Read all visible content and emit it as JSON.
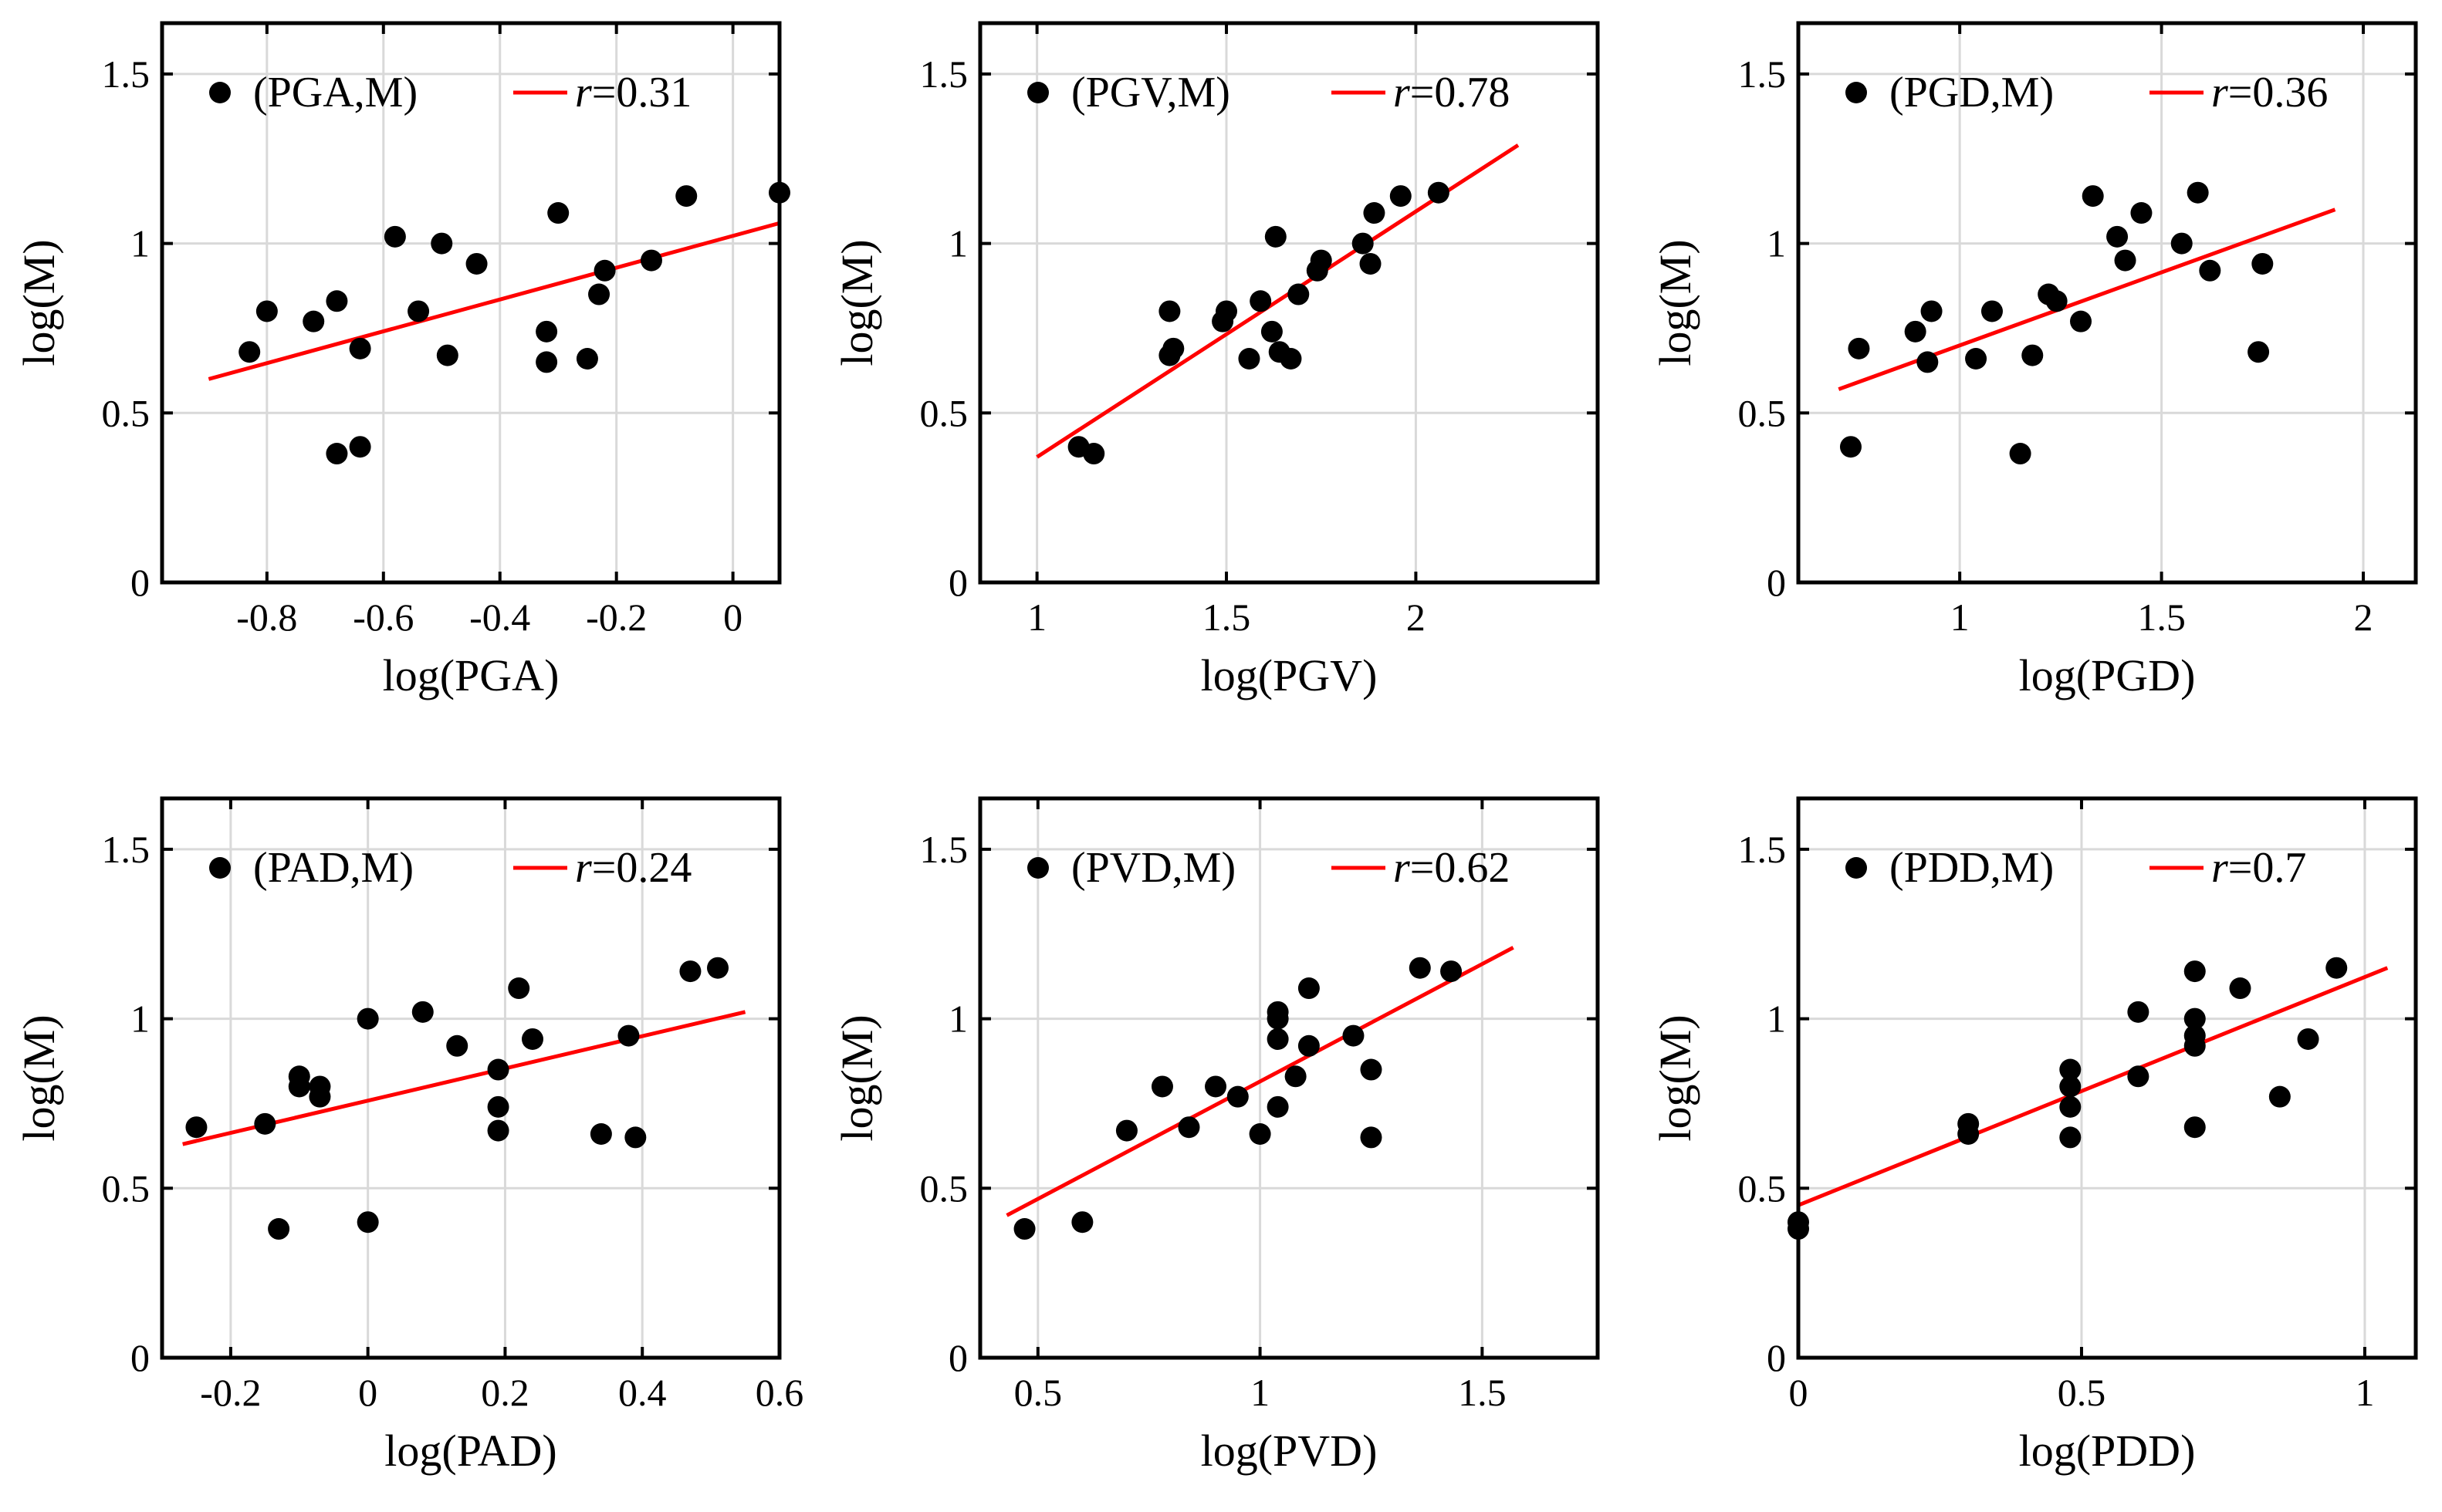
{
  "chart_data": [
    {
      "type": "scatter",
      "xlabel": "log(PGA)",
      "ylabel": "log(M)",
      "xlim": [
        -0.98,
        0.08
      ],
      "ylim": [
        0,
        1.65
      ],
      "xticks": [
        -0.8,
        -0.6,
        -0.4,
        -0.2,
        0
      ],
      "yticks": [
        0,
        0.5,
        1,
        1.5
      ],
      "xtick_labels": [
        "-0.8",
        "-0.6",
        "-0.4",
        "-0.2",
        "0"
      ],
      "ytick_labels": [
        "0",
        "0.5",
        "1",
        "1.5"
      ],
      "legend_point": "(PGA,M)",
      "legend_r_symbol": "r",
      "legend_r_value": "=0.31",
      "points": [
        [
          -0.83,
          0.68
        ],
        [
          -0.8,
          0.8
        ],
        [
          -0.72,
          0.77
        ],
        [
          -0.68,
          0.83
        ],
        [
          -0.68,
          0.38
        ],
        [
          -0.64,
          0.69
        ],
        [
          -0.64,
          0.4
        ],
        [
          -0.58,
          1.02
        ],
        [
          -0.54,
          0.8
        ],
        [
          -0.5,
          1.0
        ],
        [
          -0.49,
          0.67
        ],
        [
          -0.44,
          0.94
        ],
        [
          -0.32,
          0.74
        ],
        [
          -0.32,
          0.65
        ],
        [
          -0.3,
          1.09
        ],
        [
          -0.25,
          0.66
        ],
        [
          -0.23,
          0.85
        ],
        [
          -0.22,
          0.92
        ],
        [
          -0.14,
          0.95
        ],
        [
          -0.08,
          1.14
        ],
        [
          0.08,
          1.15
        ]
      ],
      "fit_line": [
        [
          -0.9,
          0.6
        ],
        [
          0.08,
          1.06
        ]
      ]
    },
    {
      "type": "scatter",
      "xlabel": "log(PGV)",
      "ylabel": "log(M)",
      "xlim": [
        0.85,
        2.48
      ],
      "ylim": [
        0,
        1.65
      ],
      "xticks": [
        1,
        1.5,
        2
      ],
      "yticks": [
        0,
        0.5,
        1,
        1.5
      ],
      "xtick_labels": [
        "1",
        "1.5",
        "2"
      ],
      "ytick_labels": [
        "0",
        "0.5",
        "1",
        "1.5"
      ],
      "legend_point": "(PGV,M)",
      "legend_r_symbol": "r",
      "legend_r_value": "=0.78",
      "points": [
        [
          1.11,
          0.4
        ],
        [
          1.15,
          0.38
        ],
        [
          1.35,
          0.67
        ],
        [
          1.35,
          0.8
        ],
        [
          1.36,
          0.69
        ],
        [
          1.49,
          0.77
        ],
        [
          1.5,
          0.8
        ],
        [
          1.56,
          0.66
        ],
        [
          1.59,
          0.83
        ],
        [
          1.62,
          0.74
        ],
        [
          1.63,
          1.02
        ],
        [
          1.64,
          0.68
        ],
        [
          1.67,
          0.66
        ],
        [
          1.69,
          0.85
        ],
        [
          1.74,
          0.92
        ],
        [
          1.75,
          0.95
        ],
        [
          1.86,
          1.0
        ],
        [
          1.88,
          0.94
        ],
        [
          1.89,
          1.09
        ],
        [
          1.96,
          1.14
        ],
        [
          2.06,
          1.15
        ]
      ],
      "fit_line": [
        [
          1.0,
          0.37
        ],
        [
          2.27,
          1.29
        ]
      ]
    },
    {
      "type": "scatter",
      "xlabel": "log(PGD)",
      "ylabel": "log(M)",
      "xlim": [
        0.6,
        2.13
      ],
      "ylim": [
        0,
        1.65
      ],
      "xticks": [
        1,
        1.5,
        2
      ],
      "yticks": [
        0,
        0.5,
        1,
        1.5
      ],
      "xtick_labels": [
        "1",
        "1.5",
        "2"
      ],
      "ytick_labels": [
        "0",
        "0.5",
        "1",
        "1.5"
      ],
      "legend_point": "(PGD,M)",
      "legend_r_symbol": "r",
      "legend_r_value": "=0.36",
      "points": [
        [
          0.73,
          0.4
        ],
        [
          0.75,
          0.69
        ],
        [
          0.89,
          0.74
        ],
        [
          0.92,
          0.65
        ],
        [
          0.93,
          0.8
        ],
        [
          1.04,
          0.66
        ],
        [
          1.08,
          0.8
        ],
        [
          1.15,
          0.38
        ],
        [
          1.18,
          0.67
        ],
        [
          1.22,
          0.85
        ],
        [
          1.24,
          0.83
        ],
        [
          1.3,
          0.77
        ],
        [
          1.33,
          1.14
        ],
        [
          1.39,
          1.02
        ],
        [
          1.41,
          0.95
        ],
        [
          1.45,
          1.09
        ],
        [
          1.55,
          1.0
        ],
        [
          1.59,
          1.15
        ],
        [
          1.62,
          0.92
        ],
        [
          1.74,
          0.68
        ],
        [
          1.75,
          0.94
        ]
      ],
      "fit_line": [
        [
          0.7,
          0.57
        ],
        [
          1.93,
          1.1
        ]
      ]
    },
    {
      "type": "scatter",
      "xlabel": "log(PAD)",
      "ylabel": "log(M)",
      "xlim": [
        -0.3,
        0.6
      ],
      "ylim": [
        0,
        1.65
      ],
      "xticks": [
        -0.2,
        0,
        0.2,
        0.4,
        0.6
      ],
      "yticks": [
        0,
        0.5,
        1,
        1.5
      ],
      "xtick_labels": [
        "-0.2",
        "0",
        "0.2",
        "0.4",
        "0.6"
      ],
      "ytick_labels": [
        "0",
        "0.5",
        "1",
        "1.5"
      ],
      "legend_point": "(PAD,M)",
      "legend_r_symbol": "r",
      "legend_r_value": "=0.24",
      "points": [
        [
          -0.25,
          0.68
        ],
        [
          -0.15,
          0.69
        ],
        [
          -0.13,
          0.38
        ],
        [
          -0.1,
          0.83
        ],
        [
          -0.1,
          0.8
        ],
        [
          -0.07,
          0.77
        ],
        [
          -0.07,
          0.8
        ],
        [
          0.0,
          1.0
        ],
        [
          0.0,
          0.4
        ],
        [
          0.08,
          1.02
        ],
        [
          0.13,
          0.92
        ],
        [
          0.19,
          0.85
        ],
        [
          0.19,
          0.74
        ],
        [
          0.19,
          0.67
        ],
        [
          0.22,
          1.09
        ],
        [
          0.24,
          0.94
        ],
        [
          0.34,
          0.66
        ],
        [
          0.38,
          0.95
        ],
        [
          0.39,
          0.65
        ],
        [
          0.47,
          1.14
        ],
        [
          0.51,
          1.15
        ]
      ],
      "fit_line": [
        [
          -0.27,
          0.63
        ],
        [
          0.55,
          1.02
        ]
      ]
    },
    {
      "type": "scatter",
      "xlabel": "log(PVD)",
      "ylabel": "log(M)",
      "xlim": [
        0.37,
        1.76
      ],
      "ylim": [
        0,
        1.65
      ],
      "xticks": [
        0.5,
        1,
        1.5
      ],
      "yticks": [
        0,
        0.5,
        1,
        1.5
      ],
      "xtick_labels": [
        "0.5",
        "1",
        "1.5"
      ],
      "ytick_labels": [
        "0",
        "0.5",
        "1",
        "1.5"
      ],
      "legend_point": "(PVD,M)",
      "legend_r_symbol": "r",
      "legend_r_value": "=0.62",
      "points": [
        [
          0.47,
          0.38
        ],
        [
          0.6,
          0.4
        ],
        [
          0.7,
          0.67
        ],
        [
          0.78,
          0.8
        ],
        [
          0.84,
          0.68
        ],
        [
          0.9,
          0.8
        ],
        [
          0.95,
          0.77
        ],
        [
          1.0,
          0.66
        ],
        [
          1.04,
          1.02
        ],
        [
          1.04,
          1.0
        ],
        [
          1.04,
          0.94
        ],
        [
          1.04,
          0.74
        ],
        [
          1.08,
          0.83
        ],
        [
          1.11,
          1.09
        ],
        [
          1.11,
          0.92
        ],
        [
          1.21,
          0.95
        ],
        [
          1.25,
          0.85
        ],
        [
          1.25,
          0.65
        ],
        [
          1.36,
          1.15
        ],
        [
          1.43,
          1.14
        ]
      ],
      "fit_line": [
        [
          0.43,
          0.42
        ],
        [
          1.57,
          1.21
        ]
      ]
    },
    {
      "type": "scatter",
      "xlabel": "log(PDD)",
      "ylabel": "log(M)",
      "xlim": [
        0,
        1.09
      ],
      "ylim": [
        0,
        1.65
      ],
      "xticks": [
        0,
        0.5,
        1
      ],
      "yticks": [
        0,
        0.5,
        1,
        1.5
      ],
      "xtick_labels": [
        "0",
        "0.5",
        "1"
      ],
      "ytick_labels": [
        "0",
        "0.5",
        "1",
        "1.5"
      ],
      "legend_point": "(PDD,M)",
      "legend_r_symbol": "r",
      "legend_r_value": "=0.7",
      "points": [
        [
          0.0,
          0.4
        ],
        [
          0.0,
          0.38
        ],
        [
          0.3,
          0.69
        ],
        [
          0.3,
          0.66
        ],
        [
          0.48,
          0.85
        ],
        [
          0.48,
          0.8
        ],
        [
          0.48,
          0.74
        ],
        [
          0.48,
          0.65
        ],
        [
          0.6,
          1.02
        ],
        [
          0.6,
          0.83
        ],
        [
          0.7,
          1.14
        ],
        [
          0.7,
          1.0
        ],
        [
          0.7,
          0.95
        ],
        [
          0.7,
          0.92
        ],
        [
          0.7,
          0.68
        ],
        [
          0.78,
          1.09
        ],
        [
          0.85,
          0.77
        ],
        [
          0.9,
          0.94
        ],
        [
          0.95,
          1.15
        ]
      ],
      "fit_line": [
        [
          0.0,
          0.45
        ],
        [
          1.04,
          1.15
        ]
      ]
    }
  ]
}
